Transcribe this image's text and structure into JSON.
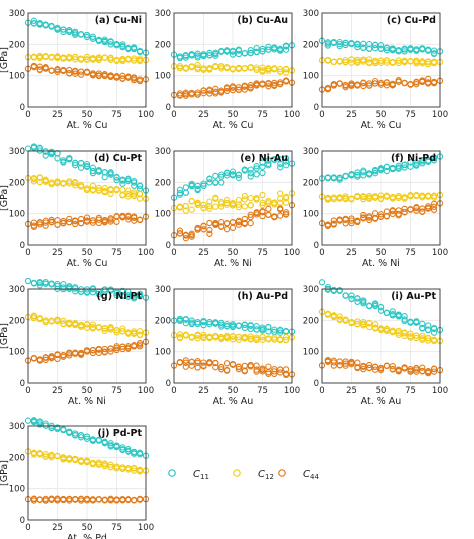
{
  "figure": {
    "legend": [
      {
        "key": "c11",
        "symbol": "C",
        "subscript": "11"
      },
      {
        "key": "c12",
        "symbol": "C",
        "subscript": "12"
      },
      {
        "key": "c44",
        "symbol": "C",
        "subscript": "44"
      }
    ],
    "colors": {
      "c11": "#2ec7c4",
      "c12": "#f2cc1a",
      "c44": "#e07a1a"
    }
  },
  "chart_data": [
    {
      "type": "scatter",
      "title": "(a) Cu-Ni",
      "xlabel": "At. % Cu",
      "ylabel": "[GPa]",
      "xlim": [
        0,
        100
      ],
      "ylim": [
        0,
        300
      ],
      "xticks": [
        0,
        25,
        50,
        75,
        100
      ],
      "yticks": [
        0,
        100,
        200,
        300
      ],
      "series": [
        {
          "key": "c11",
          "start": 275,
          "end": 175,
          "spread": 6
        },
        {
          "key": "c12",
          "start": 160,
          "end": 150,
          "spread": 5
        },
        {
          "key": "c44",
          "start": 128,
          "end": 85,
          "spread": 6
        }
      ]
    },
    {
      "type": "scatter",
      "title": "(b) Cu-Au",
      "xlabel": "At. % Cu",
      "ylabel": "",
      "xlim": [
        0,
        100
      ],
      "ylim": [
        0,
        300
      ],
      "xticks": [
        0,
        25,
        50,
        75,
        100
      ],
      "yticks": [
        0,
        100,
        200,
        300
      ],
      "series": [
        {
          "key": "c11",
          "start": 160,
          "end": 190,
          "spread": 8
        },
        {
          "key": "c12",
          "start": 130,
          "end": 115,
          "spread": 7
        },
        {
          "key": "c44",
          "start": 35,
          "end": 82,
          "spread": 8
        }
      ]
    },
    {
      "type": "scatter",
      "title": "(c) Cu-Pd",
      "xlabel": "At. % Cu",
      "ylabel": "",
      "xlim": [
        0,
        100
      ],
      "ylim": [
        0,
        300
      ],
      "xticks": [
        0,
        25,
        50,
        75,
        100
      ],
      "yticks": [
        0,
        100,
        200,
        300
      ],
      "series": [
        {
          "key": "c11",
          "start": 205,
          "end": 175,
          "spread": 8
        },
        {
          "key": "c12",
          "start": 150,
          "end": 140,
          "spread": 6
        },
        {
          "key": "c44",
          "start": 65,
          "end": 85,
          "spread": 10
        }
      ]
    },
    {
      "type": "scatter",
      "title": "(d) Cu-Pt",
      "xlabel": "At. % Cu",
      "ylabel": "[GPa]",
      "xlim": [
        0,
        100
      ],
      "ylim": [
        0,
        300
      ],
      "xticks": [
        0,
        25,
        50,
        75,
        100
      ],
      "yticks": [
        0,
        100,
        200,
        300
      ],
      "series": [
        {
          "key": "c11",
          "start": 315,
          "end": 180,
          "spread": 12
        },
        {
          "key": "c12",
          "start": 215,
          "end": 155,
          "spread": 10
        },
        {
          "key": "c44",
          "start": 65,
          "end": 90,
          "spread": 10
        }
      ]
    },
    {
      "type": "scatter",
      "title": "(e) Ni-Au",
      "xlabel": "At. % Ni",
      "ylabel": "",
      "xlim": [
        0,
        100
      ],
      "ylim": [
        0,
        300
      ],
      "xticks": [
        0,
        25,
        50,
        75,
        100
      ],
      "yticks": [
        0,
        100,
        200,
        300
      ],
      "series": [
        {
          "key": "c11",
          "start": 165,
          "end": 275,
          "spread": 18
        },
        {
          "key": "c12",
          "start": 125,
          "end": 150,
          "spread": 18
        },
        {
          "key": "c44",
          "start": 25,
          "end": 120,
          "spread": 18
        }
      ]
    },
    {
      "type": "scatter",
      "title": "(f) Ni-Pd",
      "xlabel": "At. % Ni",
      "ylabel": "",
      "xlim": [
        0,
        100
      ],
      "ylim": [
        0,
        300
      ],
      "xticks": [
        0,
        25,
        50,
        75,
        100
      ],
      "yticks": [
        0,
        100,
        200,
        300
      ],
      "series": [
        {
          "key": "c11",
          "start": 205,
          "end": 275,
          "spread": 8
        },
        {
          "key": "c12",
          "start": 150,
          "end": 155,
          "spread": 6
        },
        {
          "key": "c44",
          "start": 65,
          "end": 125,
          "spread": 10
        }
      ]
    },
    {
      "type": "scatter",
      "title": "(g) Ni-Pt",
      "xlabel": "At. % Ni",
      "ylabel": "[GPa]",
      "xlim": [
        0,
        100
      ],
      "ylim": [
        0,
        300
      ],
      "xticks": [
        0,
        25,
        50,
        75,
        100
      ],
      "yticks": [
        0,
        100,
        200,
        300
      ],
      "series": [
        {
          "key": "c11",
          "start": 320,
          "end": 275,
          "spread": 10
        },
        {
          "key": "c12",
          "start": 210,
          "end": 155,
          "spread": 8
        },
        {
          "key": "c44",
          "start": 70,
          "end": 125,
          "spread": 8
        }
      ]
    },
    {
      "type": "scatter",
      "title": "(h) Au-Pd",
      "xlabel": "At. % Au",
      "ylabel": "",
      "xlim": [
        0,
        100
      ],
      "ylim": [
        0,
        300
      ],
      "xticks": [
        0,
        25,
        50,
        75,
        100
      ],
      "yticks": [
        0,
        100,
        200,
        300
      ],
      "series": [
        {
          "key": "c11",
          "start": 200,
          "end": 165,
          "spread": 8
        },
        {
          "key": "c12",
          "start": 150,
          "end": 140,
          "spread": 6
        },
        {
          "key": "c44",
          "start": 65,
          "end": 35,
          "spread": 12
        }
      ]
    },
    {
      "type": "scatter",
      "title": "(i) Au-Pt",
      "xlabel": "At. % Au",
      "ylabel": "",
      "xlim": [
        0,
        100
      ],
      "ylim": [
        0,
        300
      ],
      "xticks": [
        0,
        25,
        50,
        75,
        100
      ],
      "yticks": [
        0,
        100,
        200,
        300
      ],
      "series": [
        {
          "key": "c11",
          "start": 315,
          "end": 160,
          "spread": 10
        },
        {
          "key": "c12",
          "start": 220,
          "end": 130,
          "spread": 8
        },
        {
          "key": "c44",
          "start": 65,
          "end": 35,
          "spread": 10
        }
      ]
    },
    {
      "type": "scatter",
      "title": "(j) Pd-Pt",
      "xlabel": "At. % Pd",
      "ylabel": "[GPa]",
      "xlim": [
        0,
        100
      ],
      "ylim": [
        0,
        300
      ],
      "xticks": [
        0,
        25,
        50,
        75,
        100
      ],
      "yticks": [
        0,
        100,
        200,
        300
      ],
      "series": [
        {
          "key": "c11",
          "start": 320,
          "end": 205,
          "spread": 6
        },
        {
          "key": "c12",
          "start": 215,
          "end": 155,
          "spread": 5
        },
        {
          "key": "c44",
          "start": 65,
          "end": 65,
          "spread": 3
        }
      ]
    }
  ]
}
